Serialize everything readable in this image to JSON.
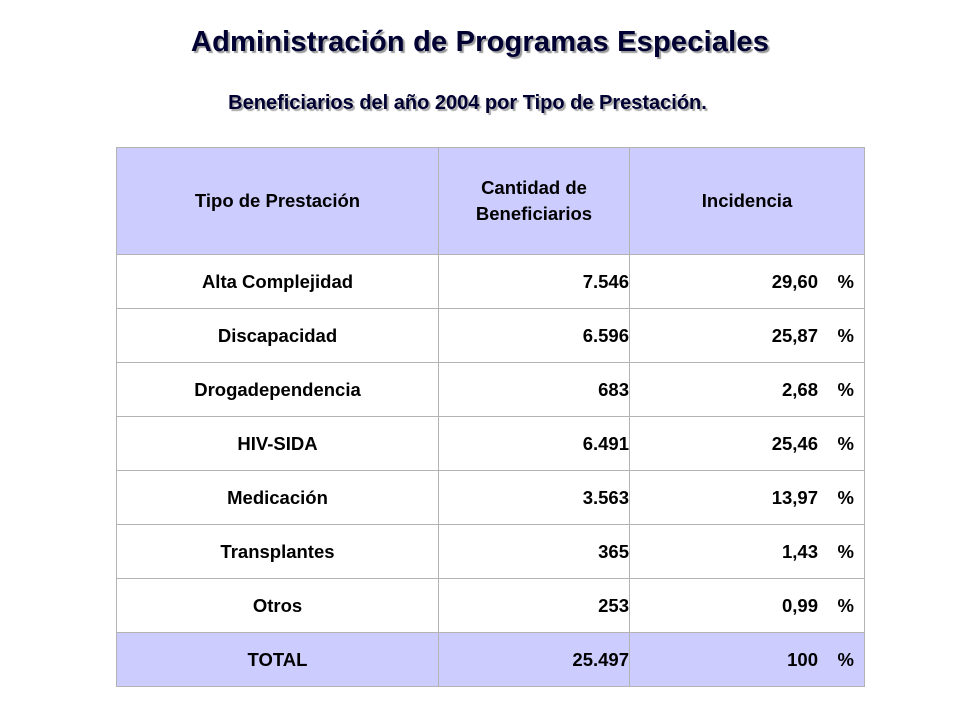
{
  "page": {
    "title": "Administración de Programas Especiales",
    "subtitle": "Beneficiarios del año 2004 por Tipo de Prestación."
  },
  "table": {
    "headers": {
      "tipo": "Tipo de Prestación",
      "cantidad_line1": "Cantidad de",
      "cantidad_line2": "Beneficiarios",
      "incidencia": "Incidencia"
    },
    "rows": [
      {
        "tipo": "Alta Complejidad",
        "cantidad": "7.546",
        "incidencia": "29,60",
        "unit": "%"
      },
      {
        "tipo": "Discapacidad",
        "cantidad": "6.596",
        "incidencia": "25,87",
        "unit": "%"
      },
      {
        "tipo": "Drogadependencia",
        "cantidad": "683",
        "incidencia": "2,68",
        "unit": "%"
      },
      {
        "tipo": "HIV-SIDA",
        "cantidad": "6.491",
        "incidencia": "25,46",
        "unit": "%"
      },
      {
        "tipo": "Medicación",
        "cantidad": "3.563",
        "incidencia": "13,97",
        "unit": "%"
      },
      {
        "tipo": "Transplantes",
        "cantidad": "365",
        "incidencia": "1,43",
        "unit": "%"
      },
      {
        "tipo": "Otros",
        "cantidad": "253",
        "incidencia": "0,99",
        "unit": "%"
      }
    ],
    "total": {
      "tipo": "TOTAL",
      "cantidad": "25.497",
      "incidencia": "100",
      "unit": "%"
    }
  },
  "colors": {
    "header_bg": "#ccccff",
    "title_color": "#000033",
    "border": "#b3b3b3"
  }
}
